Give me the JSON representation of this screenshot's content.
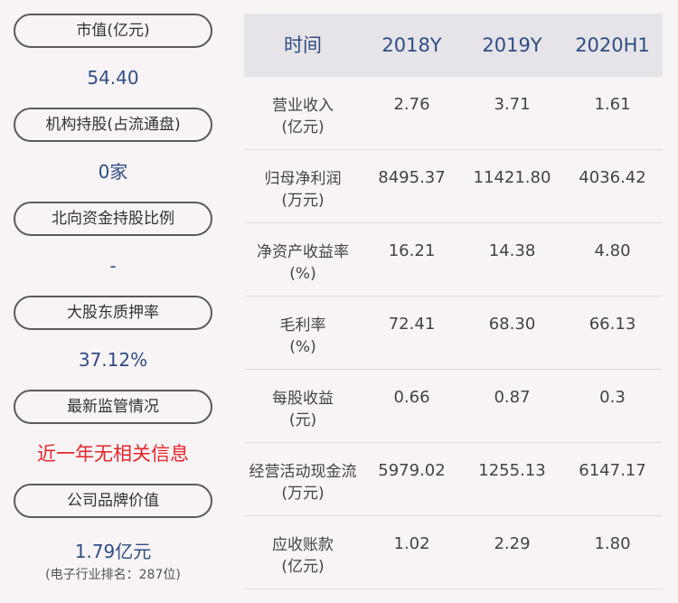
{
  "left_panel": [
    {
      "label": "市值(亿元)",
      "value": "54.40"
    },
    {
      "label": "机构持股(占流通盘)",
      "value": "0家"
    },
    {
      "label": "北向资金持股比例",
      "value": "-"
    },
    {
      "label": "大股东质押率",
      "value": "37.12%"
    },
    {
      "label": "最新监管情况",
      "value": "近一年无相关信息"
    },
    {
      "label": "公司品牌价值",
      "value": "1.79亿元",
      "sub": "(电子行业排名：287位)"
    }
  ],
  "table": {
    "headers": [
      "时间",
      "2018Y",
      "2019Y",
      "2020H1"
    ],
    "rows": [
      {
        "label": "营业收入",
        "unit": "(亿元)",
        "values": [
          "2.76",
          "3.71",
          "1.61"
        ]
      },
      {
        "label": "归母净利润",
        "unit": "(万元)",
        "values": [
          "8495.37",
          "11421.80",
          "4036.42"
        ]
      },
      {
        "label": "净资产收益率",
        "unit": "(%)",
        "values": [
          "16.21",
          "14.38",
          "4.80"
        ]
      },
      {
        "label": "毛利率",
        "unit": "(%)",
        "values": [
          "72.41",
          "68.30",
          "66.13"
        ]
      },
      {
        "label": "每股收益",
        "unit": "(元)",
        "values": [
          "0.66",
          "0.87",
          "0.3"
        ]
      },
      {
        "label": "经营活动现金流",
        "unit": "(万元)",
        "values": [
          "5979.02",
          "1255.13",
          "6147.17"
        ]
      },
      {
        "label": "应收账款",
        "unit": "(亿元)",
        "values": [
          "1.02",
          "2.29",
          "1.80"
        ]
      }
    ]
  },
  "colors": {
    "background": "#f8f3f4",
    "value_blue": "#2e4d84",
    "alert_red": "#e6242b",
    "header_bg": "#e6e4e8"
  }
}
